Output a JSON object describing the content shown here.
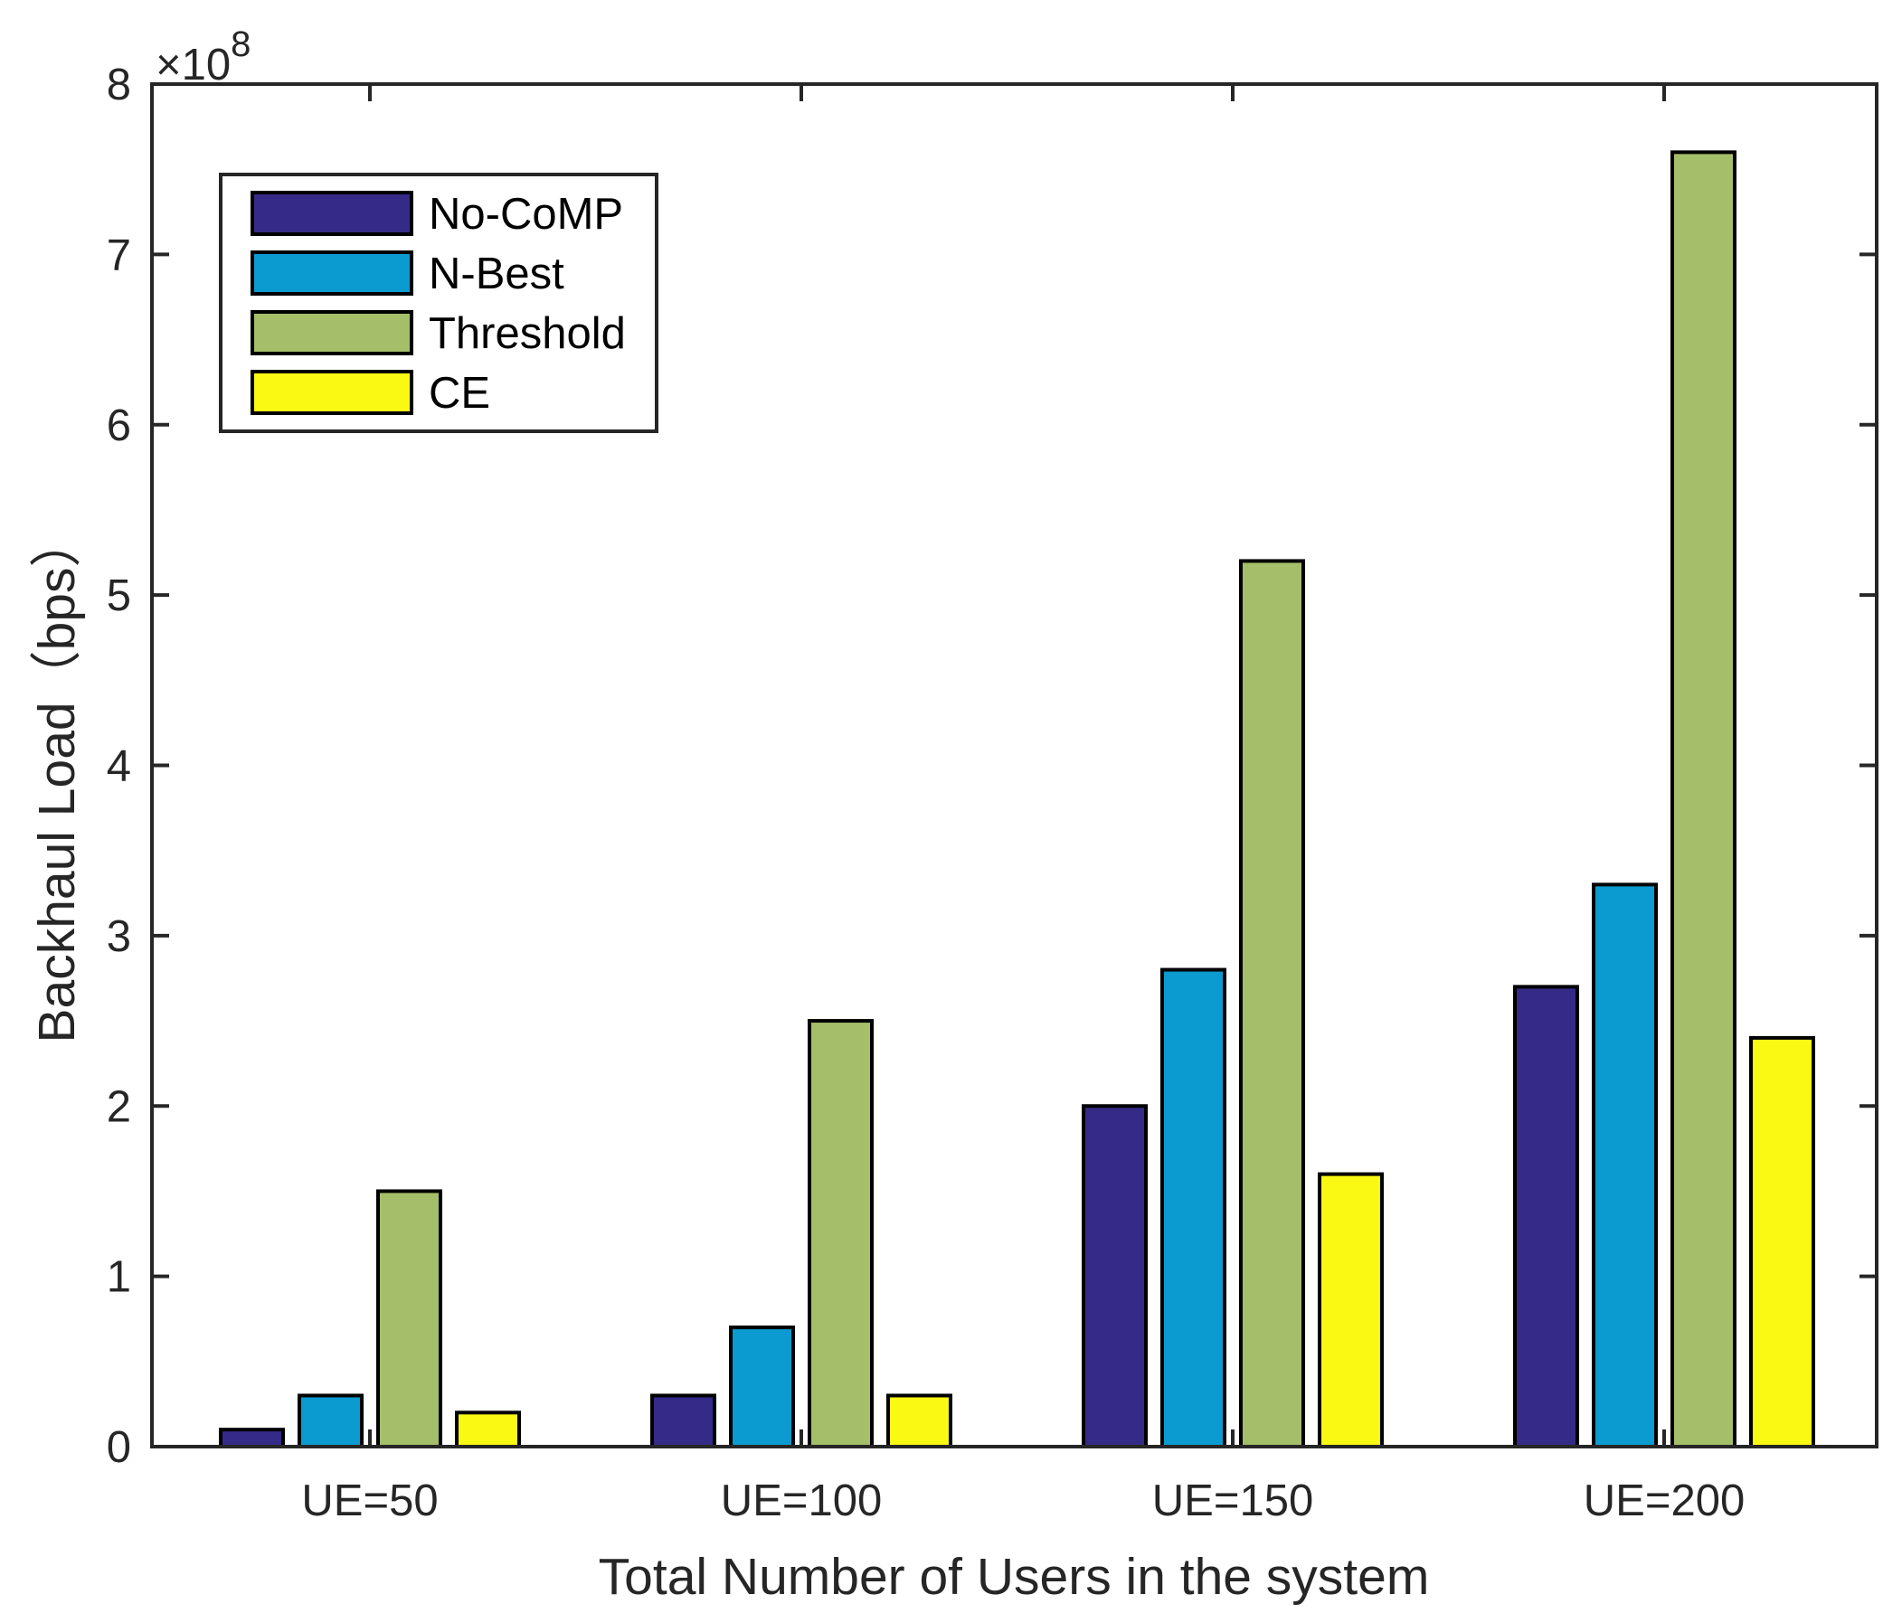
{
  "chart_data": {
    "type": "bar",
    "title": "",
    "xlabel": "Total Number of Users in the system",
    "ylabel": "Backhaul Load（bps）",
    "exponent_label": "×10",
    "exponent_power": "8",
    "categories": [
      "UE=50",
      "UE=100",
      "UE=150",
      "UE=200"
    ],
    "ylim": [
      0,
      8
    ],
    "yticks": [
      0,
      1,
      2,
      3,
      4,
      5,
      6,
      7,
      8
    ],
    "series": [
      {
        "name": "No-CoMP",
        "color": "#352a87",
        "values": [
          0.1,
          0.3,
          2.0,
          2.7
        ]
      },
      {
        "name": "N-Best",
        "color": "#0b9bd0",
        "values": [
          0.3,
          0.7,
          2.8,
          3.3
        ]
      },
      {
        "name": "Threshold",
        "color": "#a5be6a",
        "values": [
          1.5,
          2.5,
          5.2,
          7.6
        ]
      },
      {
        "name": "CE",
        "color": "#f9f914",
        "values": [
          0.2,
          0.3,
          1.6,
          2.4
        ]
      }
    ],
    "legend_position": "top-left",
    "grid": false
  }
}
